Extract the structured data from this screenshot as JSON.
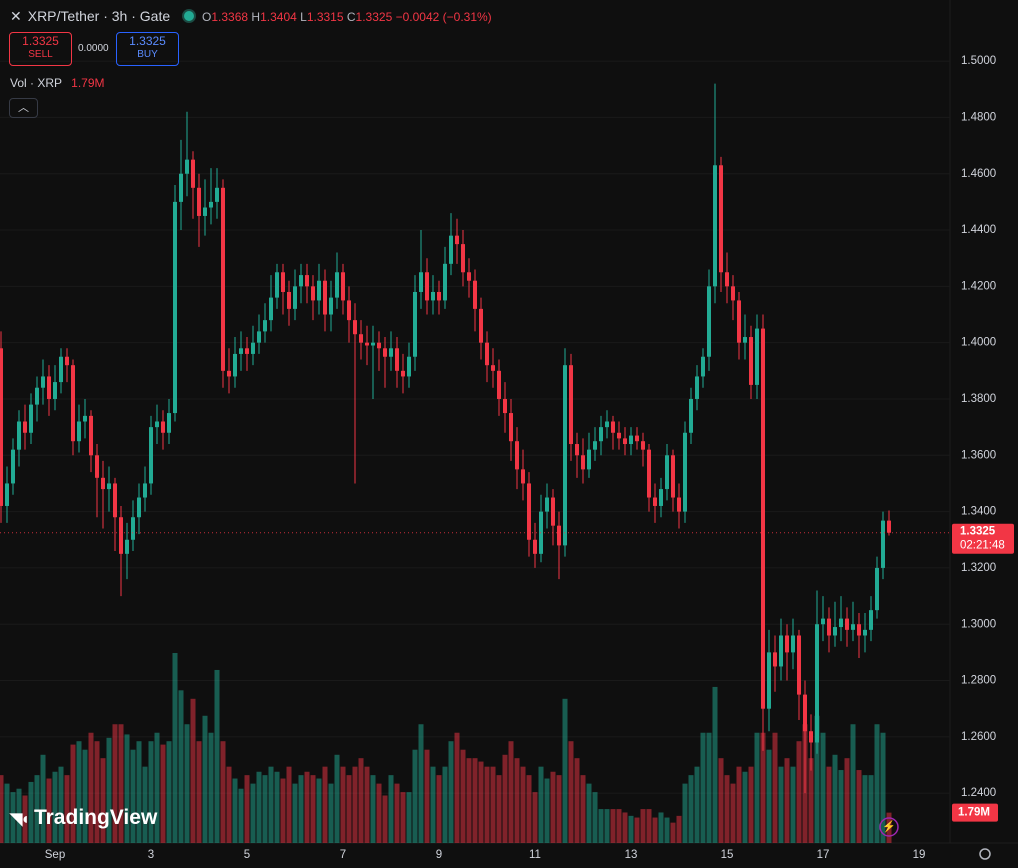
{
  "header": {
    "symbol": "XRP/Tether · 3h · Gate",
    "o": "O",
    "h": "H",
    "l": "L",
    "c": "C",
    "change": "−0.0042 (−0.31%)",
    "sell": "SELL",
    "spread": "0.0000",
    "buy": "BUY",
    "vol_title": "Vol · XRP",
    "vol_value": "1.79M"
  },
  "chart_data": {
    "type": "candlestick",
    "up_color": "#22ab94",
    "down_color": "#f23645",
    "ylim": [
      1.2223,
      1.5217
    ],
    "yticks": [
      {
        "value": 1.24,
        "label": "1.2400"
      },
      {
        "value": 1.26,
        "label": "1.2600"
      },
      {
        "value": 1.28,
        "label": "1.2800"
      },
      {
        "value": 1.3,
        "label": "1.3000"
      },
      {
        "value": 1.32,
        "label": "1.3200"
      },
      {
        "value": 1.34,
        "label": "1.3400"
      },
      {
        "value": 1.36,
        "label": "1.3600"
      },
      {
        "value": 1.38,
        "label": "1.3800"
      },
      {
        "value": 1.4,
        "label": "1.4000"
      },
      {
        "value": 1.42,
        "label": "1.4200"
      },
      {
        "value": 1.44,
        "label": "1.4400"
      },
      {
        "value": 1.46,
        "label": "1.4600"
      },
      {
        "value": 1.48,
        "label": "1.4800"
      },
      {
        "value": 1.5,
        "label": "1.5000"
      }
    ],
    "grid": true,
    "xlabels": [
      "Sep",
      "3",
      "5",
      "7",
      "9",
      "11",
      "13",
      "15",
      "17",
      "19"
    ],
    "countdown": "02:21:48",
    "candles": [
      [
        1.398,
        1.404,
        1.336,
        1.342
      ],
      [
        1.342,
        1.356,
        1.336,
        1.35
      ],
      [
        1.35,
        1.366,
        1.346,
        1.362
      ],
      [
        1.362,
        1.376,
        1.356,
        1.372
      ],
      [
        1.372,
        1.378,
        1.362,
        1.368
      ],
      [
        1.368,
        1.382,
        1.364,
        1.378
      ],
      [
        1.378,
        1.388,
        1.372,
        1.384
      ],
      [
        1.384,
        1.394,
        1.378,
        1.388
      ],
      [
        1.388,
        1.392,
        1.374,
        1.38
      ],
      [
        1.38,
        1.392,
        1.376,
        1.386
      ],
      [
        1.386,
        1.398,
        1.382,
        1.395
      ],
      [
        1.395,
        1.398,
        1.386,
        1.392
      ],
      [
        1.392,
        1.394,
        1.36,
        1.365
      ],
      [
        1.365,
        1.378,
        1.361,
        1.372
      ],
      [
        1.372,
        1.38,
        1.366,
        1.374
      ],
      [
        1.374,
        1.376,
        1.354,
        1.36
      ],
      [
        1.36,
        1.364,
        1.338,
        1.352
      ],
      [
        1.352,
        1.358,
        1.334,
        1.348
      ],
      [
        1.348,
        1.356,
        1.34,
        1.35
      ],
      [
        1.35,
        1.352,
        1.326,
        1.338
      ],
      [
        1.338,
        1.342,
        1.31,
        1.325
      ],
      [
        1.325,
        1.336,
        1.316,
        1.33
      ],
      [
        1.33,
        1.344,
        1.326,
        1.338
      ],
      [
        1.338,
        1.35,
        1.332,
        1.345
      ],
      [
        1.345,
        1.356,
        1.34,
        1.35
      ],
      [
        1.35,
        1.374,
        1.346,
        1.37
      ],
      [
        1.37,
        1.378,
        1.364,
        1.372
      ],
      [
        1.372,
        1.376,
        1.362,
        1.368
      ],
      [
        1.368,
        1.38,
        1.364,
        1.375
      ],
      [
        1.375,
        1.456,
        1.372,
        1.45
      ],
      [
        1.45,
        1.472,
        1.44,
        1.46
      ],
      [
        1.46,
        1.482,
        1.452,
        1.465
      ],
      [
        1.465,
        1.468,
        1.444,
        1.455
      ],
      [
        1.455,
        1.46,
        1.434,
        1.445
      ],
      [
        1.445,
        1.458,
        1.438,
        1.448
      ],
      [
        1.448,
        1.462,
        1.442,
        1.45
      ],
      [
        1.45,
        1.462,
        1.444,
        1.455
      ],
      [
        1.455,
        1.458,
        1.384,
        1.39
      ],
      [
        1.39,
        1.398,
        1.382,
        1.388
      ],
      [
        1.388,
        1.402,
        1.384,
        1.396
      ],
      [
        1.396,
        1.404,
        1.39,
        1.398
      ],
      [
        1.398,
        1.402,
        1.39,
        1.396
      ],
      [
        1.396,
        1.406,
        1.392,
        1.4
      ],
      [
        1.4,
        1.41,
        1.396,
        1.404
      ],
      [
        1.404,
        1.414,
        1.4,
        1.408
      ],
      [
        1.408,
        1.424,
        1.404,
        1.416
      ],
      [
        1.416,
        1.428,
        1.412,
        1.425
      ],
      [
        1.425,
        1.428,
        1.41,
        1.418
      ],
      [
        1.418,
        1.422,
        1.406,
        1.412
      ],
      [
        1.412,
        1.426,
        1.408,
        1.42
      ],
      [
        1.42,
        1.428,
        1.414,
        1.424
      ],
      [
        1.424,
        1.428,
        1.414,
        1.42
      ],
      [
        1.42,
        1.424,
        1.408,
        1.415
      ],
      [
        1.415,
        1.428,
        1.41,
        1.422
      ],
      [
        1.422,
        1.426,
        1.404,
        1.41
      ],
      [
        1.41,
        1.422,
        1.404,
        1.416
      ],
      [
        1.416,
        1.432,
        1.412,
        1.425
      ],
      [
        1.425,
        1.428,
        1.41,
        1.415
      ],
      [
        1.415,
        1.42,
        1.4,
        1.408
      ],
      [
        1.408,
        1.414,
        1.35,
        1.403
      ],
      [
        1.403,
        1.408,
        1.394,
        1.4
      ],
      [
        1.4,
        1.406,
        1.392,
        1.399
      ],
      [
        1.399,
        1.406,
        1.38,
        1.4
      ],
      [
        1.4,
        1.404,
        1.39,
        1.398
      ],
      [
        1.398,
        1.402,
        1.384,
        1.395
      ],
      [
        1.395,
        1.404,
        1.39,
        1.398
      ],
      [
        1.398,
        1.402,
        1.384,
        1.39
      ],
      [
        1.39,
        1.396,
        1.382,
        1.388
      ],
      [
        1.388,
        1.4,
        1.384,
        1.395
      ],
      [
        1.395,
        1.424,
        1.39,
        1.418
      ],
      [
        1.418,
        1.44,
        1.412,
        1.425
      ],
      [
        1.425,
        1.43,
        1.41,
        1.415
      ],
      [
        1.415,
        1.424,
        1.41,
        1.418
      ],
      [
        1.418,
        1.422,
        1.41,
        1.415
      ],
      [
        1.415,
        1.434,
        1.412,
        1.428
      ],
      [
        1.428,
        1.446,
        1.424,
        1.438
      ],
      [
        1.438,
        1.444,
        1.428,
        1.435
      ],
      [
        1.435,
        1.44,
        1.42,
        1.425
      ],
      [
        1.425,
        1.43,
        1.416,
        1.422
      ],
      [
        1.422,
        1.426,
        1.404,
        1.412
      ],
      [
        1.412,
        1.416,
        1.394,
        1.4
      ],
      [
        1.4,
        1.404,
        1.386,
        1.392
      ],
      [
        1.392,
        1.398,
        1.384,
        1.39
      ],
      [
        1.39,
        1.394,
        1.374,
        1.38
      ],
      [
        1.38,
        1.386,
        1.368,
        1.375
      ],
      [
        1.375,
        1.38,
        1.358,
        1.365
      ],
      [
        1.365,
        1.37,
        1.348,
        1.355
      ],
      [
        1.355,
        1.362,
        1.344,
        1.35
      ],
      [
        1.35,
        1.354,
        1.324,
        1.33
      ],
      [
        1.33,
        1.336,
        1.32,
        1.325
      ],
      [
        1.325,
        1.346,
        1.322,
        1.34
      ],
      [
        1.34,
        1.35,
        1.334,
        1.345
      ],
      [
        1.345,
        1.348,
        1.328,
        1.335
      ],
      [
        1.335,
        1.34,
        1.316,
        1.328
      ],
      [
        1.328,
        1.398,
        1.324,
        1.392
      ],
      [
        1.392,
        1.396,
        1.358,
        1.364
      ],
      [
        1.364,
        1.368,
        1.352,
        1.36
      ],
      [
        1.36,
        1.366,
        1.35,
        1.355
      ],
      [
        1.355,
        1.368,
        1.352,
        1.362
      ],
      [
        1.362,
        1.37,
        1.358,
        1.365
      ],
      [
        1.365,
        1.374,
        1.36,
        1.37
      ],
      [
        1.37,
        1.376,
        1.366,
        1.372
      ],
      [
        1.372,
        1.374,
        1.362,
        1.368
      ],
      [
        1.368,
        1.372,
        1.362,
        1.366
      ],
      [
        1.366,
        1.37,
        1.36,
        1.364
      ],
      [
        1.364,
        1.37,
        1.36,
        1.367
      ],
      [
        1.367,
        1.37,
        1.362,
        1.365
      ],
      [
        1.365,
        1.368,
        1.356,
        1.362
      ],
      [
        1.362,
        1.364,
        1.34,
        1.345
      ],
      [
        1.345,
        1.35,
        1.336,
        1.342
      ],
      [
        1.342,
        1.352,
        1.338,
        1.348
      ],
      [
        1.348,
        1.364,
        1.344,
        1.36
      ],
      [
        1.36,
        1.362,
        1.34,
        1.345
      ],
      [
        1.345,
        1.35,
        1.334,
        1.34
      ],
      [
        1.34,
        1.372,
        1.336,
        1.368
      ],
      [
        1.368,
        1.384,
        1.364,
        1.38
      ],
      [
        1.38,
        1.392,
        1.376,
        1.388
      ],
      [
        1.388,
        1.398,
        1.384,
        1.395
      ],
      [
        1.395,
        1.426,
        1.39,
        1.42
      ],
      [
        1.42,
        1.492,
        1.414,
        1.463
      ],
      [
        1.463,
        1.466,
        1.418,
        1.425
      ],
      [
        1.425,
        1.432,
        1.414,
        1.42
      ],
      [
        1.42,
        1.424,
        1.408,
        1.415
      ],
      [
        1.415,
        1.418,
        1.394,
        1.4
      ],
      [
        1.4,
        1.41,
        1.394,
        1.402
      ],
      [
        1.402,
        1.406,
        1.38,
        1.385
      ],
      [
        1.385,
        1.41,
        1.38,
        1.405
      ],
      [
        1.405,
        1.41,
        1.255,
        1.27
      ],
      [
        1.27,
        1.298,
        1.262,
        1.29
      ],
      [
        1.29,
        1.296,
        1.276,
        1.285
      ],
      [
        1.285,
        1.302,
        1.28,
        1.296
      ],
      [
        1.296,
        1.3,
        1.28,
        1.29
      ],
      [
        1.29,
        1.302,
        1.284,
        1.296
      ],
      [
        1.296,
        1.298,
        1.266,
        1.275
      ],
      [
        1.275,
        1.28,
        1.24,
        1.262
      ],
      [
        1.262,
        1.268,
        1.248,
        1.258
      ],
      [
        1.258,
        1.312,
        1.254,
        1.3
      ],
      [
        1.3,
        1.31,
        1.294,
        1.302
      ],
      [
        1.302,
        1.306,
        1.29,
        1.296
      ],
      [
        1.296,
        1.308,
        1.292,
        1.299
      ],
      [
        1.299,
        1.31,
        1.294,
        1.302
      ],
      [
        1.302,
        1.306,
        1.292,
        1.298
      ],
      [
        1.298,
        1.308,
        1.294,
        1.3
      ],
      [
        1.3,
        1.304,
        1.288,
        1.296
      ],
      [
        1.296,
        1.304,
        1.29,
        1.298
      ],
      [
        1.298,
        1.31,
        1.294,
        1.305
      ],
      [
        1.305,
        1.324,
        1.302,
        1.32
      ],
      [
        1.32,
        1.34,
        1.316,
        1.3368
      ],
      [
        1.3368,
        1.3404,
        1.3315,
        1.3325
      ]
    ],
    "volume": [
      4.0,
      3.5,
      3.0,
      3.2,
      2.8,
      3.6,
      4.0,
      5.2,
      3.8,
      4.2,
      4.5,
      4.0,
      5.8,
      6.0,
      5.5,
      6.5,
      6.0,
      5.0,
      6.2,
      7.0,
      7.0,
      6.4,
      5.5,
      6.0,
      4.5,
      6.0,
      6.5,
      5.8,
      6.0,
      11.2,
      9.0,
      7.0,
      8.5,
      6.0,
      7.5,
      6.5,
      10.2,
      6.0,
      4.5,
      3.8,
      3.2,
      4.0,
      3.5,
      4.2,
      4.0,
      4.5,
      4.2,
      3.8,
      4.5,
      3.5,
      4.0,
      4.2,
      4.0,
      3.8,
      4.5,
      3.5,
      5.2,
      4.5,
      4.0,
      4.5,
      5.0,
      4.5,
      4.0,
      3.5,
      2.8,
      4.0,
      3.5,
      3.0,
      3.0,
      5.5,
      7.0,
      5.5,
      4.5,
      4.0,
      4.5,
      6.0,
      6.5,
      5.5,
      5.0,
      5.0,
      4.8,
      4.5,
      4.5,
      4.0,
      5.2,
      6.0,
      5.0,
      4.5,
      4.0,
      3.0,
      4.5,
      3.8,
      4.2,
      4.0,
      8.5,
      6.0,
      5.0,
      4.0,
      3.5,
      3.0,
      2.0,
      2.0,
      2.0,
      2.0,
      1.8,
      1.6,
      1.5,
      2.0,
      2.0,
      1.5,
      1.8,
      1.5,
      1.2,
      1.6,
      3.5,
      4.0,
      4.5,
      6.5,
      6.5,
      9.2,
      5.0,
      4.0,
      3.5,
      4.5,
      4.2,
      4.5,
      6.5,
      6.5,
      5.5,
      6.5,
      4.5,
      5.0,
      4.5,
      6.0,
      7.0,
      5.0,
      7.5,
      6.5,
      4.5,
      5.2,
      4.3,
      5.0,
      7.0,
      4.3,
      4.0,
      4.0,
      7.0,
      6.5,
      1.79
    ]
  },
  "footer": {
    "logo": "TradingView"
  }
}
